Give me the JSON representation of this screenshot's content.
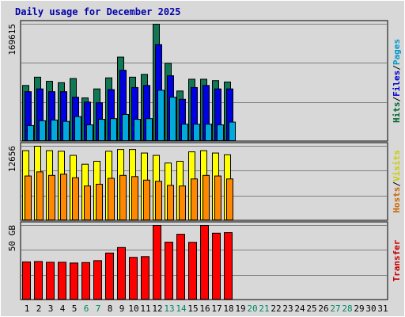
{
  "chart_data": {
    "type": "bar",
    "title": "Daily usage for December 2025",
    "x": [
      "1",
      "2",
      "3",
      "4",
      "5",
      "6",
      "7",
      "8",
      "9",
      "10",
      "11",
      "12",
      "13",
      "14",
      "15",
      "16",
      "17",
      "18",
      "19",
      "20",
      "21",
      "22",
      "23",
      "24",
      "25",
      "26",
      "27",
      "28",
      "29",
      "30",
      "31"
    ],
    "weekend_days": [
      "6",
      "7",
      "13",
      "14",
      "20",
      "21",
      "27",
      "28"
    ],
    "panels": [
      {
        "id": "hits",
        "ymax_label": "169615",
        "ymax": 169615,
        "right_label": [
          {
            "text": "Hits",
            "color": "#006633"
          },
          {
            "text": "/",
            "color": "#000000"
          },
          {
            "text": "Files",
            "color": "#0000cc"
          },
          {
            "text": "/",
            "color": "#000000"
          },
          {
            "text": "Pages",
            "color": "#0099cc"
          }
        ],
        "series": [
          {
            "name": "Hits",
            "color": "#117755",
            "values": [
              81000,
              93000,
              87000,
              85000,
              91000,
              63000,
              76000,
              92000,
              122000,
              93000,
              97000,
              170000,
              113000,
              73000,
              90000,
              90000,
              88000,
              86000,
              0,
              0,
              0,
              0,
              0,
              0,
              0,
              0,
              0,
              0,
              0,
              0,
              0
            ]
          },
          {
            "name": "Files",
            "color": "#0000e0",
            "values": [
              72000,
              76000,
              72000,
              72000,
              64000,
              57000,
              56000,
              75000,
              103000,
              78000,
              81000,
              140000,
              95000,
              61000,
              78000,
              81000,
              76000,
              76000,
              0,
              0,
              0,
              0,
              0,
              0,
              0,
              0,
              0,
              0,
              0,
              0,
              0
            ]
          },
          {
            "name": "Pages",
            "color": "#00aadd",
            "values": [
              23000,
              30000,
              31000,
              29000,
              36000,
              24000,
              32000,
              33000,
              39000,
              32000,
              33000,
              74000,
              64000,
              25000,
              25000,
              25000,
              24000,
              28000,
              0,
              0,
              0,
              0,
              0,
              0,
              0,
              0,
              0,
              0,
              0,
              0,
              0
            ]
          }
        ]
      },
      {
        "id": "visits",
        "ymax_label": "12656",
        "ymax": 12656,
        "right_label": [
          {
            "text": "Hosts",
            "color": "#cc6600"
          },
          {
            "text": "/",
            "color": "#000000"
          },
          {
            "text": "Visits",
            "color": "#cccc00"
          }
        ],
        "series": [
          {
            "name": "Visits",
            "color": "#ffff00",
            "values": [
              11900,
              12656,
              11900,
              11800,
              11100,
              9600,
              10100,
              11800,
              12100,
              12100,
              11500,
              11100,
              9800,
              10100,
              11700,
              11900,
              11500,
              11200,
              0,
              0,
              0,
              0,
              0,
              0,
              0,
              0,
              0,
              0,
              0,
              0,
              0
            ]
          },
          {
            "name": "Hosts",
            "color": "#ff8800",
            "values": [
              7600,
              8300,
              7700,
              7900,
              7300,
              5900,
              6200,
              7200,
              7700,
              7500,
              6900,
              6700,
              6000,
              5900,
              7100,
              7700,
              7600,
              7100,
              0,
              0,
              0,
              0,
              0,
              0,
              0,
              0,
              0,
              0,
              0,
              0,
              0
            ]
          }
        ]
      },
      {
        "id": "transfer",
        "ymax_label": "50 GB",
        "ymax": 50,
        "right_label": [
          {
            "text": "Transfer",
            "color": "#cc0000"
          }
        ],
        "series": [
          {
            "name": "Transfer",
            "color": "#ff0000",
            "values": [
              25.5,
              25.8,
              25.3,
              25.3,
              24.8,
              25.1,
              26.4,
              31.5,
              35.2,
              28.6,
              29.1,
              50.9,
              38.8,
              44.1,
              38.7,
              50.2,
              44.8,
              45.2,
              0,
              0,
              0,
              0,
              0,
              0,
              0,
              0,
              0,
              0,
              0,
              0,
              0
            ]
          }
        ]
      }
    ],
    "colors": {
      "title": "#0000aa",
      "weekday_label": "#000000",
      "weekend_label": "#008866",
      "panel_bg": "#d8d8d8",
      "grid": "#808080"
    }
  }
}
